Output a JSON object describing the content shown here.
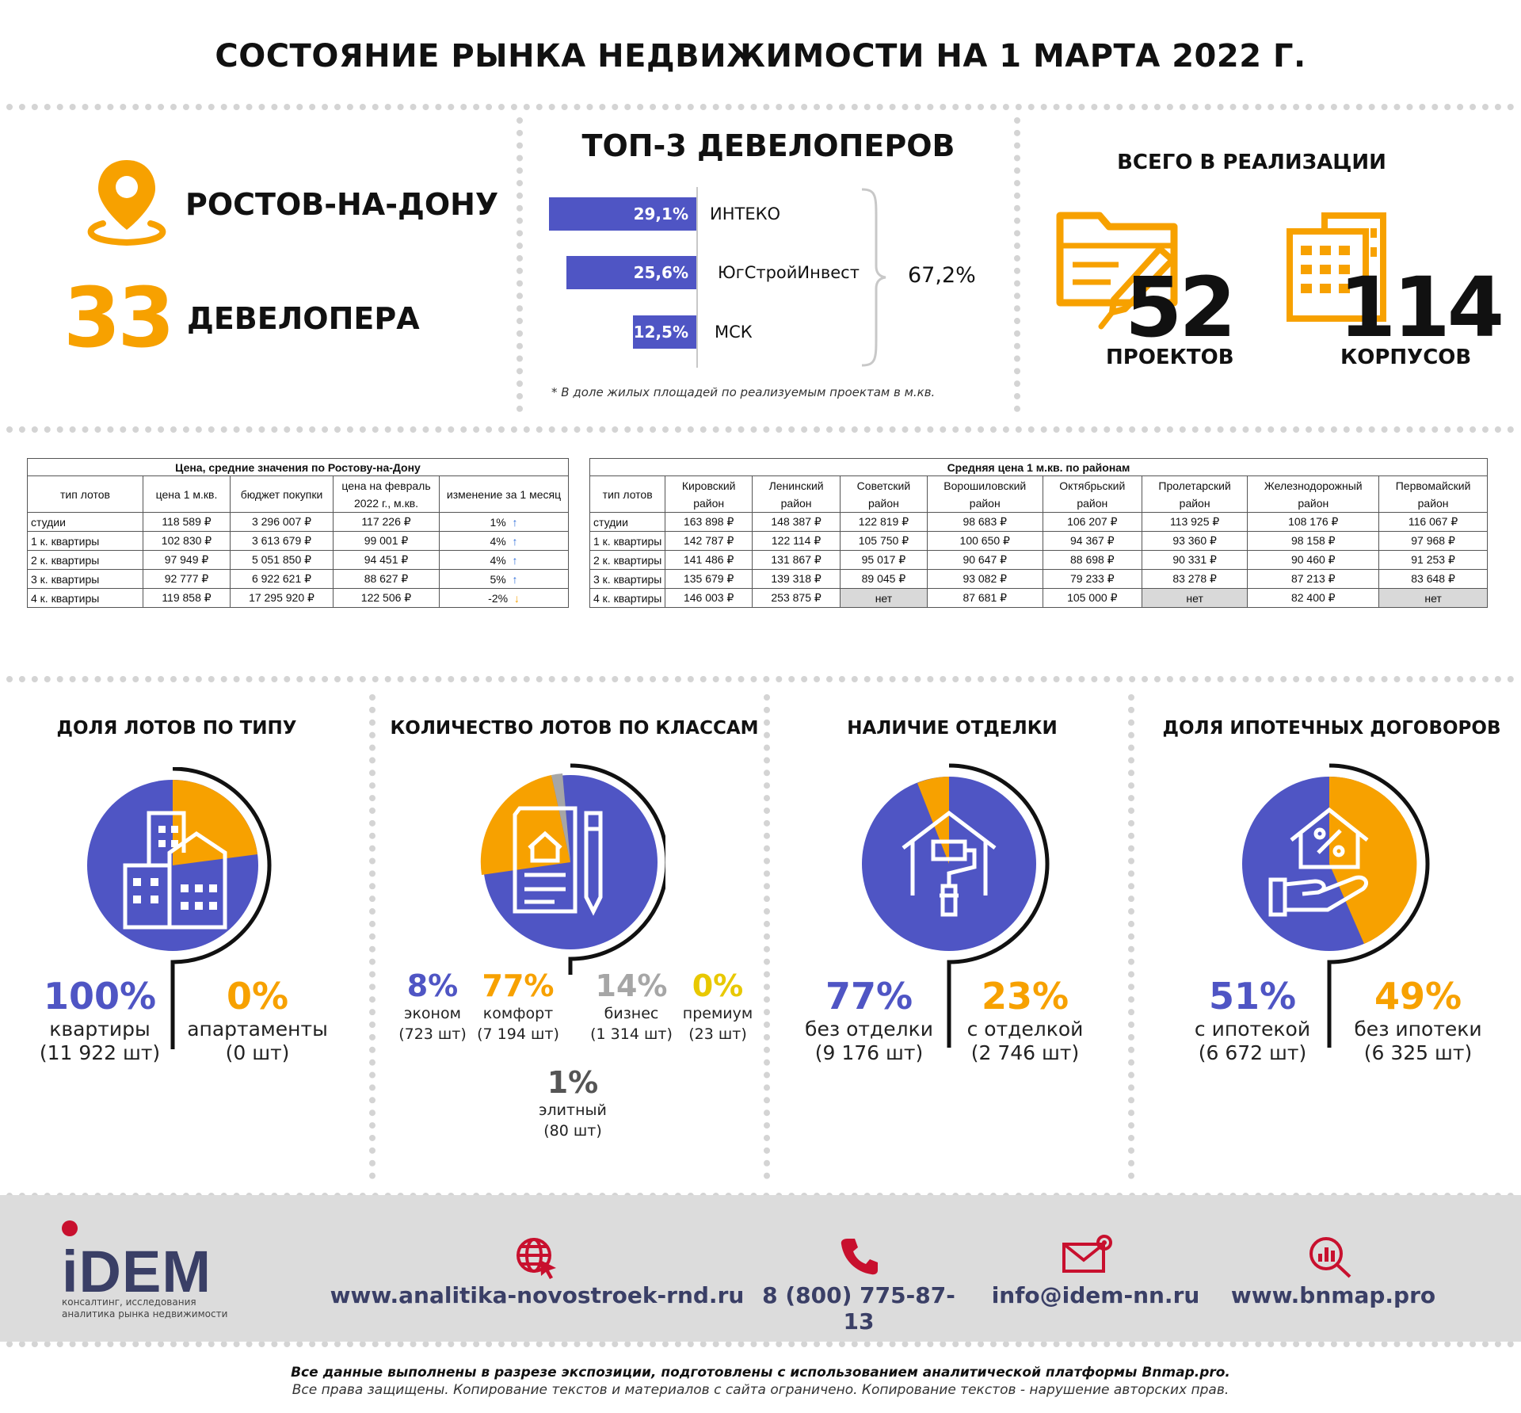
{
  "title": "СОСТОЯНИЕ РЫНКА НЕДВИЖИМОСТИ НА 1 МАРТА 2022 Г.",
  "colors": {
    "blue": "#4f55c4",
    "orange": "#f7a100",
    "gray": "#a6a6a6",
    "dark": "#3a3f66",
    "red": "#c8102e"
  },
  "city": {
    "name": "РОСТОВ-НА-ДОНУ",
    "icon": "map-pin-icon"
  },
  "developers": {
    "count": "33",
    "label": "ДЕВЕЛОПЕРА"
  },
  "top3": {
    "title": "ТОП-3 ДЕВЕЛОПЕРОВ",
    "items": [
      {
        "share": 29.1,
        "label": "29,1%",
        "name": "ИНТЕКО"
      },
      {
        "share": 25.6,
        "label": "25,6%",
        "name": "ЮгСтройИнвест"
      },
      {
        "share": 12.5,
        "label": "12,5%",
        "name": "МСК"
      }
    ],
    "total": "67,2%",
    "note": "* В доле жилых площадей по реализуемым проектам в м.кв."
  },
  "implementation": {
    "title": "ВСЕГО В РЕАЛИЗАЦИИ",
    "projects": {
      "value": "52",
      "label": "ПРОЕКТОВ",
      "icon": "folder-icon"
    },
    "buildings": {
      "value": "114",
      "label": "КОРПУСОВ",
      "icon": "buildings-icon"
    }
  },
  "price_table": {
    "caption": "Цена, средние значения по Ростову-на-Дону",
    "headers": [
      "тип лотов",
      "цена 1 м.кв.",
      "бюджет покупки",
      "цена на февраль 2022 г., м.кв.",
      "изменение за 1 месяц"
    ],
    "rows": [
      {
        "type": "студии",
        "price": "118 589 ₽",
        "budget": "3 296 007 ₽",
        "feb": "117 226 ₽",
        "change": "1%",
        "dir": "↑"
      },
      {
        "type": "1 к. квартиры",
        "price": "102 830 ₽",
        "budget": "3 613 679 ₽",
        "feb": "99 001 ₽",
        "change": "4%",
        "dir": "↑"
      },
      {
        "type": "2 к. квартиры",
        "price": "97 949 ₽",
        "budget": "5 051 850 ₽",
        "feb": "94 451 ₽",
        "change": "4%",
        "dir": "↑"
      },
      {
        "type": "3 к. квартиры",
        "price": "92 777 ₽",
        "budget": "6 922 621 ₽",
        "feb": "88 627 ₽",
        "change": "5%",
        "dir": "↑"
      },
      {
        "type": "4 к. квартиры",
        "price": "119 858 ₽",
        "budget": "17 295 920 ₽",
        "feb": "122 506 ₽",
        "change": "-2%",
        "dir": "↓"
      }
    ]
  },
  "district_table": {
    "caption": "Средняя цена 1 м.кв. по районам",
    "headers": [
      "тип лотов",
      "Кировский район",
      "Ленинский район",
      "Советский район",
      "Ворошиловский район",
      "Октябрьский район",
      "Пролетарский район",
      "Железнодорожный район",
      "Первомайский район"
    ],
    "rows": [
      [
        "студии",
        "163 898 ₽",
        "148 387 ₽",
        "122 819 ₽",
        "98 683 ₽",
        "106 207 ₽",
        "113 925 ₽",
        "108 176 ₽",
        "116 067 ₽"
      ],
      [
        "1 к. квартиры",
        "142 787 ₽",
        "122 114 ₽",
        "105 750 ₽",
        "100 650 ₽",
        "94 367 ₽",
        "93 360 ₽",
        "98 158 ₽",
        "97 968 ₽"
      ],
      [
        "2 к. квартиры",
        "141 486 ₽",
        "131 867 ₽",
        "95 017 ₽",
        "90 647 ₽",
        "88 698 ₽",
        "90 331 ₽",
        "90 460 ₽",
        "91 253 ₽"
      ],
      [
        "3 к. квартиры",
        "135 679 ₽",
        "139 318 ₽",
        "89 045 ₽",
        "93 082 ₽",
        "79 233 ₽",
        "83 278 ₽",
        "87 213 ₽",
        "83 648 ₽"
      ],
      [
        "4 к. квартиры",
        "146 003 ₽",
        "253 875 ₽",
        "нет",
        "87 681 ₽",
        "105 000 ₽",
        "нет",
        "82 400 ₽",
        "нет"
      ]
    ]
  },
  "lot_type": {
    "title": "ДОЛЯ ЛОТОВ ПО ТИПУ",
    "icon": "city-buildings-icon",
    "items": [
      {
        "pct": "100%",
        "name": "квартиры",
        "count": "(11 922 шт)"
      },
      {
        "pct": "0%",
        "name": "апартаменты",
        "count": "(0 шт)"
      }
    ]
  },
  "lot_class": {
    "title": "КОЛИЧЕСТВО ЛОТОВ ПО КЛАССАМ",
    "icon": "document-pen-icon",
    "items": [
      {
        "pct": "8%",
        "name": "эконом",
        "count": "(723 шт)"
      },
      {
        "pct": "77%",
        "name": "комфорт",
        "count": "(7 194 шт)"
      },
      {
        "pct": "14%",
        "name": "бизнес",
        "count": "(1 314 шт)"
      },
      {
        "pct": "0%",
        "name": "премиум",
        "count": "(23 шт)"
      },
      {
        "pct": "1%",
        "name": "элитный",
        "count": "(80 шт)"
      }
    ]
  },
  "finish": {
    "title": "НАЛИЧИЕ ОТДЕЛКИ",
    "icon": "house-paint-roller-icon",
    "items": [
      {
        "pct": "77%",
        "name": "без отделки",
        "count": "(9 176 шт)"
      },
      {
        "pct": "23%",
        "name": "с отделкой",
        "count": "(2 746 шт)"
      }
    ]
  },
  "mortgage": {
    "title": "ДОЛЯ ИПОТЕЧНЫХ ДОГОВОРОВ",
    "icon": "house-percent-hand-icon",
    "items": [
      {
        "pct": "51%",
        "name": "с ипотекой",
        "count": "(6 672 шт)"
      },
      {
        "pct": "49%",
        "name": "без ипотеки",
        "count": "(6 325 шт)"
      }
    ]
  },
  "footer": {
    "logo": "iDEM",
    "logo_sub1": "консалтинг, исследования",
    "logo_sub2": "аналитика рынка недвижимости",
    "contacts": [
      {
        "icon": "globe-cursor-icon",
        "text": "www.analitika-novostroek-rnd.ru"
      },
      {
        "icon": "phone-icon",
        "text": "8 (800) 775-87-13"
      },
      {
        "icon": "email-icon",
        "text": "info@idem-nn.ru"
      },
      {
        "icon": "magnifier-chart-icon",
        "text": "www.bnmap.pro"
      }
    ],
    "note1": "Все данные выполнены в разрезе экспозиции, подготовлены с использованием аналитической платформы Bnmap.pro.",
    "note2": "Все права защищены. Копирование текстов и материалов с сайта ограничено. Копирование текстов - нарушение авторских прав."
  }
}
